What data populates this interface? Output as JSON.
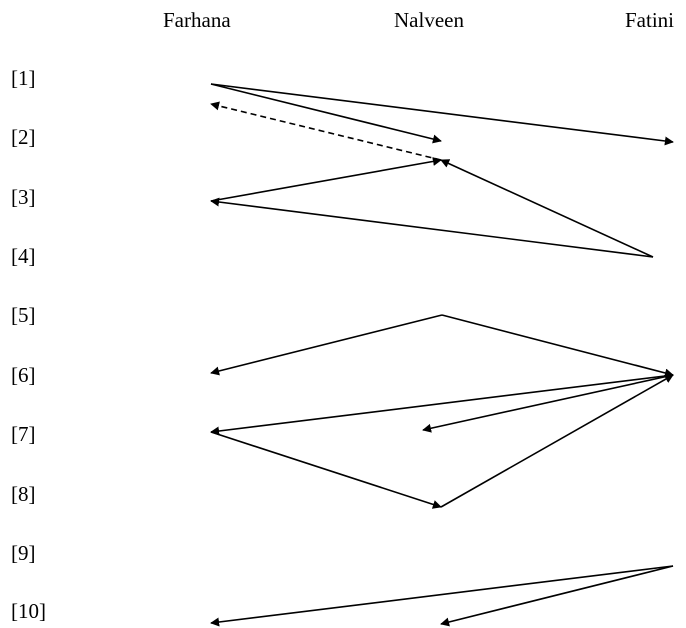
{
  "participants": [
    "Farhana",
    "Nalveen",
    "Fatini"
  ],
  "rows": [
    "[1]",
    "[2]",
    "[3]",
    "[4]",
    "[5]",
    "[6]",
    "[7]",
    "[8]",
    "[9]",
    "[10]"
  ],
  "arrows": [
    {
      "from": "Farhana",
      "to": "Nalveen",
      "style": "solid"
    },
    {
      "from": "Farhana",
      "to": "Fatini",
      "style": "solid"
    },
    {
      "from": "Nalveen",
      "to": "Farhana",
      "style": "dashed"
    },
    {
      "from": "Farhana",
      "to": "Nalveen",
      "style": "solid"
    },
    {
      "from": "Fatini",
      "to": "Nalveen",
      "style": "solid"
    },
    {
      "from": "Fatini",
      "to": "Farhana",
      "style": "solid"
    },
    {
      "from": "Nalveen",
      "to": "Farhana",
      "style": "solid"
    },
    {
      "from": "Nalveen",
      "to": "Fatini",
      "style": "solid"
    },
    {
      "from": "Fatini",
      "to": "Farhana",
      "style": "solid"
    },
    {
      "from": "Fatini",
      "to": "Nalveen",
      "style": "solid"
    },
    {
      "from": "Farhana",
      "to": "Nalveen",
      "style": "solid"
    },
    {
      "from": "Nalveen",
      "to": "Fatini",
      "style": "solid"
    },
    {
      "from": "Fatini",
      "to": "Farhana",
      "style": "solid"
    },
    {
      "from": "Fatini",
      "to": "Nalveen",
      "style": "solid"
    }
  ],
  "colors": {
    "line": "#000000",
    "background": "#ffffff"
  }
}
